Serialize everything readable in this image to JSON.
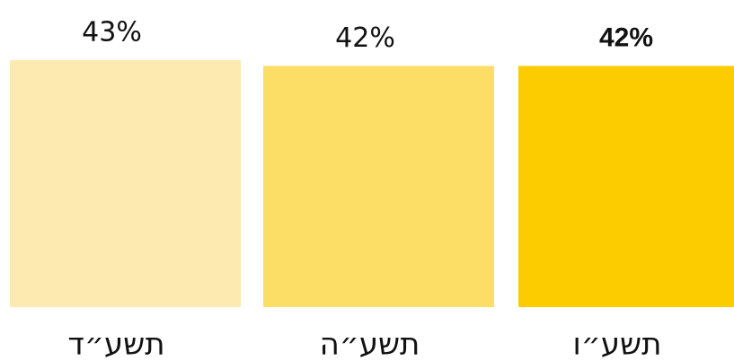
{
  "chart_data": {
    "type": "bar",
    "categories": [
      "תשע״ד",
      "תשע״ה",
      "תשע״ו"
    ],
    "values": [
      43,
      42,
      42
    ],
    "value_labels": [
      "43%",
      "42%",
      "42%"
    ],
    "colors": [
      "#fdeab1",
      "#fcdd66",
      "#fccb00"
    ]
  }
}
